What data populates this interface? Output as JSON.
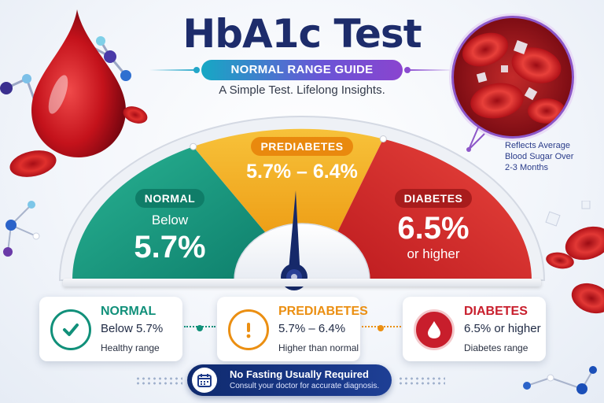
{
  "header": {
    "title": "HbA1c Test",
    "subtitle": "NORMAL RANGE GUIDE",
    "tagline": "A Simple Test. Lifelong Insights."
  },
  "side_note": {
    "line1": "Reflects Average",
    "line2": "Blood Sugar Over",
    "line3": "2-3 Months"
  },
  "gauge": {
    "normal": {
      "label": "NORMAL",
      "sub": "Below",
      "value": "5.7%"
    },
    "prediabetes": {
      "label": "PREDIABETES",
      "range": "5.7% – 6.4%"
    },
    "diabetes": {
      "label": "DIABETES",
      "value": "6.5%",
      "sub": "or higher"
    }
  },
  "cards": [
    {
      "title": "NORMAL",
      "range": "Below 5.7%",
      "note": "Healthy range",
      "icon": "check-icon",
      "color": "#11907a"
    },
    {
      "title": "PREDIABETES",
      "range": "5.7% – 6.4%",
      "note": "Higher than normal",
      "icon": "exclamation-icon",
      "color": "#eb8f12"
    },
    {
      "title": "DIABETES",
      "range": "6.5% or higher",
      "note": "Diabetes range",
      "icon": "blood-drop-icon",
      "color": "#c81e2c"
    }
  ],
  "footer": {
    "main": "No Fasting Usually Required",
    "sub": "Consult your doctor for accurate diagnosis.",
    "icon": "calendar-icon"
  },
  "colors": {
    "normal": "#12957d",
    "prediabetes": "#f4b125",
    "diabetes": "#d9312c",
    "navy": "#1d2c6b"
  }
}
